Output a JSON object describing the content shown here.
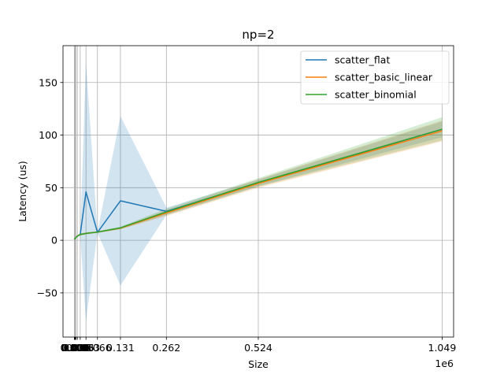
{
  "chart_data": {
    "type": "line",
    "title": "np=2",
    "xlabel": "Size",
    "ylabel": "Latency (us)",
    "x_offset_label": "1e6",
    "xlim": [
      -32768,
      1081344
    ],
    "ylim": [
      -92,
      185
    ],
    "grid": true,
    "legend_position": "top-right",
    "x": [
      1,
      2,
      4,
      8,
      16,
      32,
      64,
      128,
      256,
      512,
      1024,
      2048,
      4096,
      8192,
      16384,
      32768,
      65536,
      131072,
      262144,
      524288,
      1048576
    ],
    "x_ticks": [
      {
        "value": 1,
        "label": "0.000"
      },
      {
        "value": 2,
        "label": "0.000"
      },
      {
        "value": 4,
        "label": "0.000"
      },
      {
        "value": 8,
        "label": "0.000"
      },
      {
        "value": 16,
        "label": "0.000"
      },
      {
        "value": 32,
        "label": "0.000"
      },
      {
        "value": 64,
        "label": "0.000"
      },
      {
        "value": 128,
        "label": "0.000"
      },
      {
        "value": 256,
        "label": "0.000"
      },
      {
        "value": 512,
        "label": "0.001"
      },
      {
        "value": 1024,
        "label": "0.001"
      },
      {
        "value": 2048,
        "label": "0.002"
      },
      {
        "value": 4096,
        "label": "0.004"
      },
      {
        "value": 8192,
        "label": "0.008"
      },
      {
        "value": 16384,
        "label": "0.016"
      },
      {
        "value": 32768,
        "label": "0.033"
      },
      {
        "value": 65536,
        "label": "0.066"
      },
      {
        "value": 131072,
        "label": "0.131"
      },
      {
        "value": 262144,
        "label": "0.262"
      },
      {
        "value": 524288,
        "label": "0.524"
      },
      {
        "value": 1048576,
        "label": "1.049"
      }
    ],
    "y_ticks": [
      -50,
      0,
      50,
      100,
      150
    ],
    "series": [
      {
        "name": "scatter_flat",
        "color": "#1f77b4",
        "values": [
          0.8,
          0.8,
          0.8,
          0.8,
          0.9,
          0.9,
          1.0,
          1.0,
          1.1,
          1.2,
          1.4,
          1.8,
          2.5,
          4.0,
          5.5,
          46,
          7.5,
          37.5,
          27.5,
          54.5,
          105.5
        ],
        "lower": [
          0.5,
          0.5,
          0.5,
          0.5,
          0.6,
          0.6,
          0.7,
          0.7,
          0.8,
          0.9,
          1.0,
          1.3,
          1.9,
          3.2,
          4.5,
          -77,
          7.0,
          -43,
          24.0,
          51.5,
          98
        ],
        "upper": [
          1.1,
          1.1,
          1.1,
          1.1,
          1.2,
          1.2,
          1.3,
          1.3,
          1.4,
          1.5,
          1.8,
          2.3,
          3.1,
          4.8,
          6.5,
          169,
          8.0,
          118,
          31.0,
          57.5,
          113
        ]
      },
      {
        "name": "scatter_basic_linear",
        "color": "#ff7f0e",
        "values": [
          0.8,
          0.8,
          0.8,
          0.8,
          0.9,
          0.9,
          1.0,
          1.0,
          1.1,
          1.2,
          1.4,
          1.8,
          2.5,
          4.0,
          5.5,
          6.5,
          7.8,
          11.5,
          26.0,
          54.0,
          104.0
        ],
        "lower": [
          0.5,
          0.5,
          0.5,
          0.5,
          0.6,
          0.6,
          0.7,
          0.7,
          0.8,
          0.9,
          1.0,
          1.3,
          1.9,
          3.2,
          4.5,
          5.5,
          7.0,
          10.5,
          23.0,
          50.0,
          94.0
        ],
        "upper": [
          1.1,
          1.1,
          1.1,
          1.1,
          1.2,
          1.2,
          1.3,
          1.3,
          1.4,
          1.5,
          1.8,
          2.3,
          3.1,
          4.8,
          6.5,
          7.5,
          8.6,
          12.5,
          29.0,
          58.0,
          114.0
        ]
      },
      {
        "name": "scatter_binomial",
        "color": "#2ca02c",
        "values": [
          0.8,
          0.8,
          0.8,
          0.8,
          0.9,
          0.9,
          1.0,
          1.0,
          1.1,
          1.2,
          1.4,
          1.8,
          2.5,
          4.0,
          5.5,
          6.5,
          7.8,
          11.8,
          27.0,
          55.0,
          105.5
        ],
        "lower": [
          0.5,
          0.5,
          0.5,
          0.5,
          0.6,
          0.6,
          0.7,
          0.7,
          0.8,
          0.9,
          1.0,
          1.3,
          1.9,
          3.2,
          4.5,
          5.5,
          7.0,
          10.5,
          24.0,
          51.0,
          95.0
        ],
        "upper": [
          1.1,
          1.1,
          1.1,
          1.1,
          1.2,
          1.2,
          1.3,
          1.3,
          1.4,
          1.5,
          1.8,
          2.3,
          3.1,
          4.8,
          6.5,
          7.5,
          8.6,
          13.0,
          30.0,
          59.0,
          117.0
        ]
      }
    ]
  }
}
